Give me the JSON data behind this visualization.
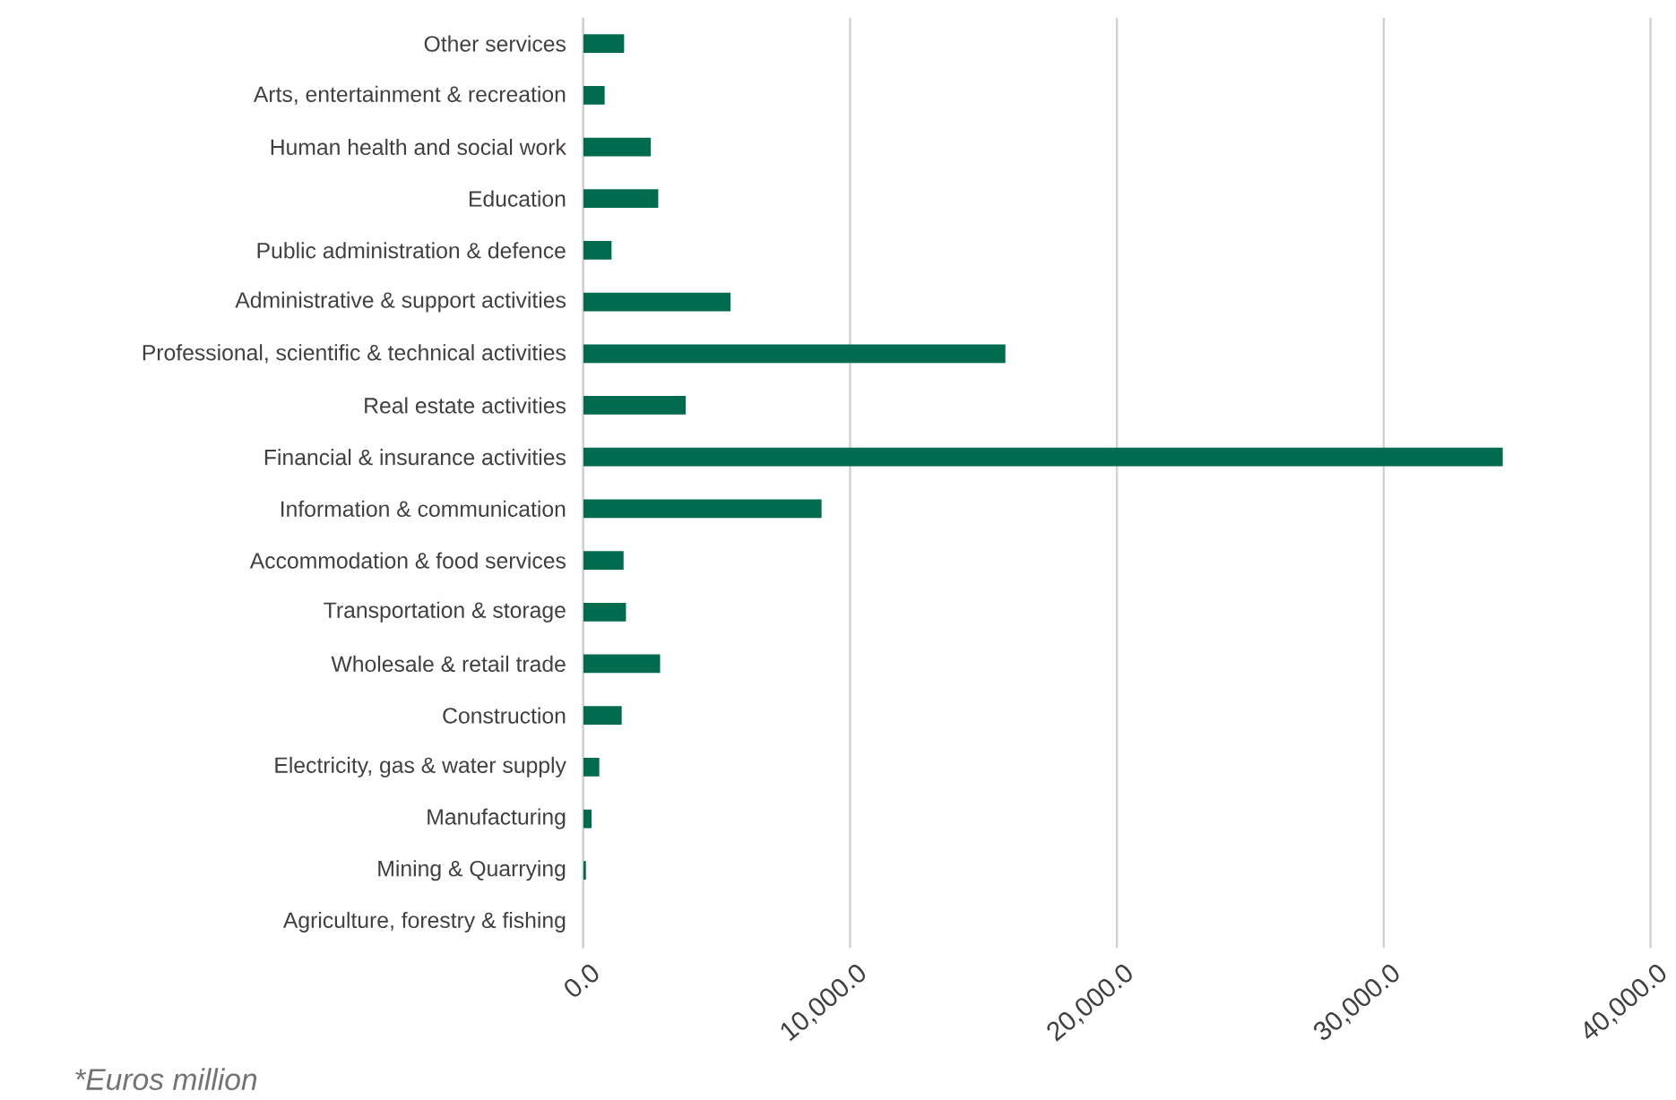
{
  "chart_data": {
    "type": "bar",
    "orientation": "horizontal",
    "categories": [
      "Other services",
      "Arts, entertainment & recreation",
      "Human health and social work",
      "Education",
      "Public administration & defence",
      "Administrative & support activities",
      "Professional, scientific & technical activities",
      "Real estate activities",
      "Financial & insurance activities",
      "Information & communication",
      "Accommodation & food services",
      "Transportation & storage",
      "Wholesale & retail trade",
      "Construction",
      "Electricity, gas & water supply",
      "Manufacturing",
      "Mining & Quarrying",
      "Agriculture, forestry & fishing"
    ],
    "values": [
      1530,
      800,
      2530,
      2810,
      1060,
      5520,
      15820,
      3840,
      34460,
      8930,
      1510,
      1600,
      2880,
      1440,
      600,
      310,
      100,
      0
    ],
    "color": "#006b4e",
    "xlim": [
      0,
      40000
    ],
    "xticks": [
      {
        "value": 0,
        "label": "0.0"
      },
      {
        "value": 10000,
        "label": "10,000.0"
      },
      {
        "value": 20000,
        "label": "20,000.0"
      },
      {
        "value": 30000,
        "label": "30,000.0"
      },
      {
        "value": 40000,
        "label": "40,000.0"
      }
    ],
    "grid": "x",
    "annotations": [
      "*Euros million"
    ]
  }
}
